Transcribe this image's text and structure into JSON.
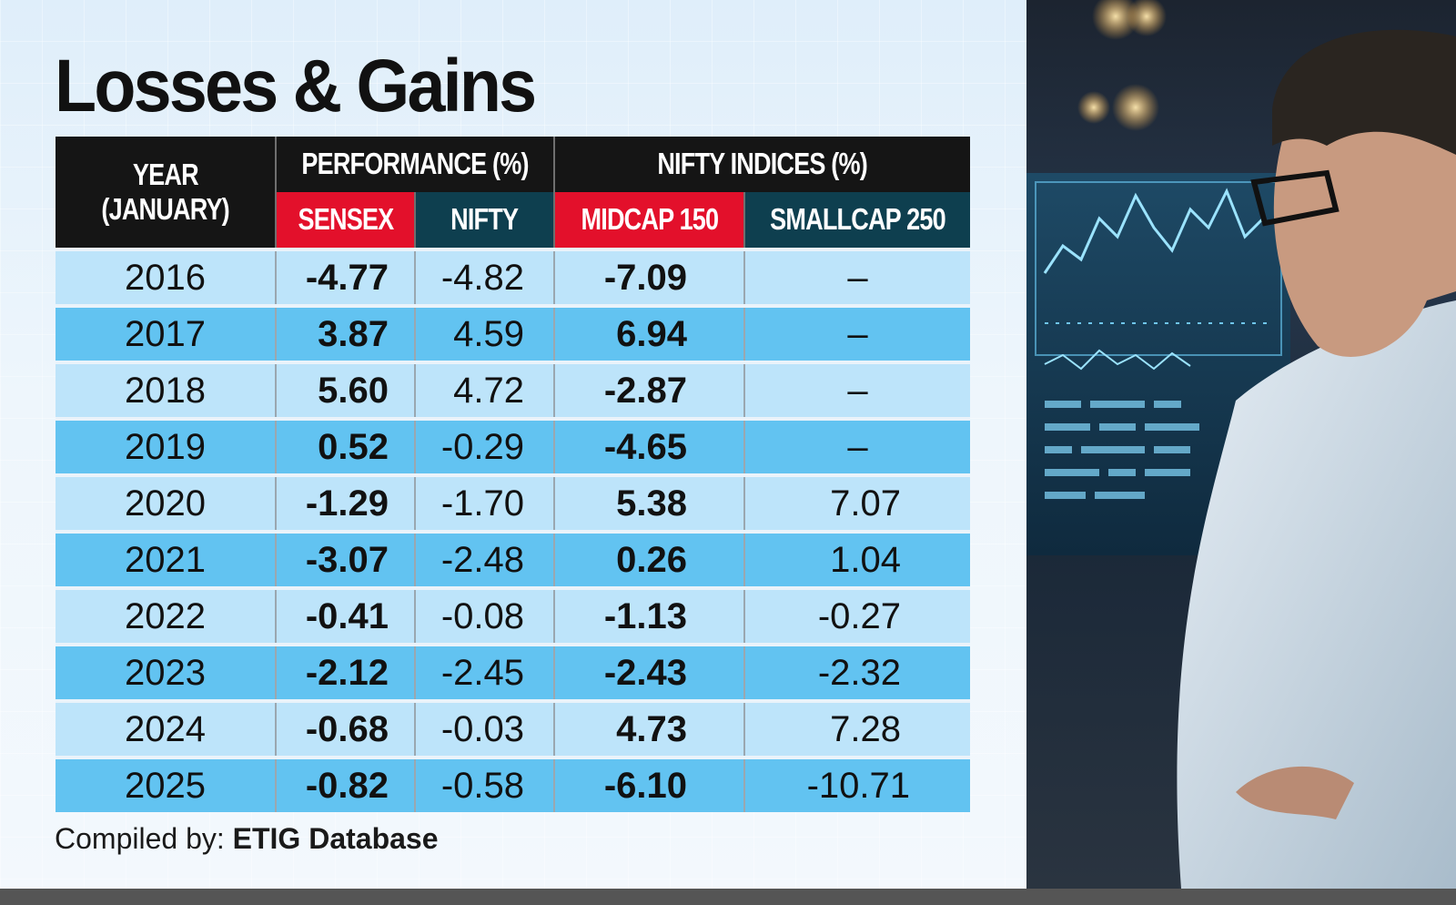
{
  "title": "Losses & Gains",
  "header": {
    "year_label_line1": "YEAR",
    "year_label_line2": "(JANUARY)",
    "group_performance": "PERFORMANCE (%)",
    "group_nifty_indices": "NIFTY INDICES  (%)",
    "col_sensex": "SENSEX",
    "col_nifty": "NIFTY",
    "col_midcap": "MIDCAP 150",
    "col_smallcap": "SMALLCAP 250"
  },
  "rows": [
    {
      "year": "2016",
      "sensex": "-4.77",
      "nifty": "-4.82",
      "midcap": "-7.09",
      "smallcap": "–"
    },
    {
      "year": "2017",
      "sensex": "3.87",
      "nifty": "4.59",
      "midcap": "6.94",
      "smallcap": "–"
    },
    {
      "year": "2018",
      "sensex": "5.60",
      "nifty": "4.72",
      "midcap": "-2.87",
      "smallcap": "–"
    },
    {
      "year": "2019",
      "sensex": "0.52",
      "nifty": "-0.29",
      "midcap": "-4.65",
      "smallcap": "–"
    },
    {
      "year": "2020",
      "sensex": "-1.29",
      "nifty": "-1.70",
      "midcap": "5.38",
      "smallcap": "7.07"
    },
    {
      "year": "2021",
      "sensex": "-3.07",
      "nifty": "-2.48",
      "midcap": "0.26",
      "smallcap": "1.04"
    },
    {
      "year": "2022",
      "sensex": "-0.41",
      "nifty": "-0.08",
      "midcap": "-1.13",
      "smallcap": "-0.27"
    },
    {
      "year": "2023",
      "sensex": "-2.12",
      "nifty": "-2.45",
      "midcap": "-2.43",
      "smallcap": "-2.32"
    },
    {
      "year": "2024",
      "sensex": "-0.68",
      "nifty": "-0.03",
      "midcap": "4.73",
      "smallcap": "7.28"
    },
    {
      "year": "2025",
      "sensex": "-0.82",
      "nifty": "-0.58",
      "midcap": "-6.10",
      "smallcap": "-10.71"
    }
  ],
  "footer": {
    "label": "Compiled by: ",
    "source": "ETIG Database"
  },
  "colors": {
    "header_dark": "#151515",
    "sensex_red": "#e3102b",
    "nifty_teal": "#0e3f4f",
    "row_light": "#bde4fa",
    "row_dark": "#62c3f1"
  },
  "chart_data": {
    "type": "table",
    "title": "Losses & Gains",
    "columns": [
      "YEAR (JANUARY)",
      "SENSEX",
      "NIFTY",
      "MIDCAP 150",
      "SMALLCAP 250"
    ],
    "column_groups": [
      {
        "name": "PERFORMANCE (%)",
        "columns": [
          "SENSEX",
          "NIFTY"
        ]
      },
      {
        "name": "NIFTY INDICES  (%)",
        "columns": [
          "MIDCAP 150",
          "SMALLCAP 250"
        ]
      }
    ],
    "x": [
      "2016",
      "2017",
      "2018",
      "2019",
      "2020",
      "2021",
      "2022",
      "2023",
      "2024",
      "2025"
    ],
    "series": [
      {
        "name": "SENSEX",
        "values": [
          -4.77,
          3.87,
          5.6,
          0.52,
          -1.29,
          -3.07,
          -0.41,
          -2.12,
          -0.68,
          -0.82
        ]
      },
      {
        "name": "NIFTY",
        "values": [
          -4.82,
          4.59,
          4.72,
          -0.29,
          -1.7,
          -2.48,
          -0.08,
          -2.45,
          -0.03,
          -0.58
        ]
      },
      {
        "name": "MIDCAP 150",
        "values": [
          -7.09,
          6.94,
          -2.87,
          -4.65,
          5.38,
          0.26,
          -1.13,
          -2.43,
          4.73,
          -6.1
        ]
      },
      {
        "name": "SMALLCAP 250",
        "values": [
          null,
          null,
          null,
          null,
          7.07,
          1.04,
          -0.27,
          -2.32,
          7.28,
          -10.71
        ]
      }
    ]
  }
}
